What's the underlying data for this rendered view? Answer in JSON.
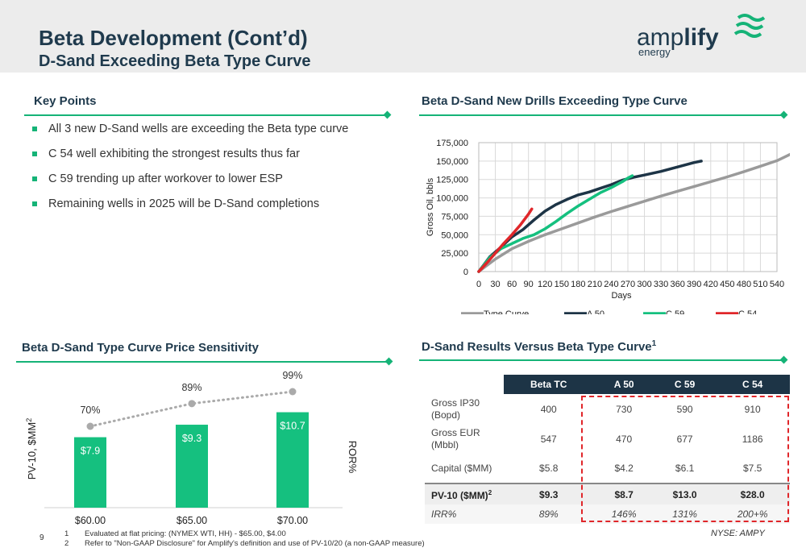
{
  "header": {
    "title": "Beta Development (Cont’d)",
    "subtitle": "D-Sand Exceeding Beta Type Curve",
    "logo_text": "amplify energy"
  },
  "key_points": {
    "title": "Key Points",
    "items": [
      "All 3 new D-Sand wells are exceeding the Beta type curve",
      "C 54 well exhibiting the strongest results thus far",
      "C 59 trending up after workover to lower ESP",
      "Remaining wells in 2025 will be D-Sand completions"
    ]
  },
  "line_section": {
    "title": "Beta D-Sand New Drills Exceeding Type Curve"
  },
  "bar_section": {
    "title": "Beta D-Sand Type Curve Price Sensitivity"
  },
  "table_section": {
    "title": "D-Sand Results Versus Beta Type Curve",
    "superscript": "1"
  },
  "chart_data": [
    {
      "type": "line",
      "title": "Beta D-Sand New Drills Exceeding Type Curve",
      "xlabel": "Days",
      "ylabel": "Gross Oil, bbls",
      "xlim": [
        0,
        540
      ],
      "ylim": [
        0,
        175000
      ],
      "xticks": [
        "0",
        "30",
        "60",
        "90",
        "120",
        "150",
        "180",
        "210",
        "240",
        "270",
        "300",
        "330",
        "360",
        "390",
        "420",
        "450",
        "480",
        "510",
        "540"
      ],
      "yticks": [
        "0",
        "25,000",
        "50,000",
        "75,000",
        "100,000",
        "125,000",
        "150,000",
        "175,000"
      ],
      "grid": true,
      "legend_position": "bottom",
      "series": [
        {
          "name": "Type Curve",
          "color": "#9a9a9a",
          "points": [
            [
              0,
              0
            ],
            [
              30,
              17000
            ],
            [
              60,
              31000
            ],
            [
              90,
              41000
            ],
            [
              120,
              50000
            ],
            [
              150,
              58000
            ],
            [
              180,
              66000
            ],
            [
              210,
              74000
            ],
            [
              240,
              81500
            ],
            [
              270,
              88500
            ],
            [
              300,
              95500
            ],
            [
              330,
              102500
            ],
            [
              360,
              109000
            ],
            [
              390,
              115500
            ],
            [
              420,
              122000
            ],
            [
              450,
              128500
            ],
            [
              480,
              135500
            ],
            [
              510,
              143000
            ],
            [
              540,
              150500
            ],
            [
              572,
              162000
            ]
          ]
        },
        {
          "name": "A 50",
          "color": "#1d3446",
          "points": [
            [
              0,
              0
            ],
            [
              20,
              20000
            ],
            [
              40,
              33000
            ],
            [
              60,
              47000
            ],
            [
              80,
              57000
            ],
            [
              100,
              70000
            ],
            [
              120,
              82000
            ],
            [
              140,
              91000
            ],
            [
              160,
              98000
            ],
            [
              180,
              104000
            ],
            [
              200,
              108000
            ],
            [
              220,
              113000
            ],
            [
              240,
              118000
            ],
            [
              260,
              124000
            ],
            [
              280,
              128000
            ],
            [
              300,
              131000
            ],
            [
              330,
              136000
            ],
            [
              360,
              142000
            ],
            [
              390,
              148000
            ],
            [
              403,
              150000
            ]
          ]
        },
        {
          "name": "C 59",
          "color": "#15c07f",
          "points": [
            [
              0,
              0
            ],
            [
              20,
              19000
            ],
            [
              40,
              31000
            ],
            [
              60,
              38000
            ],
            [
              80,
              45000
            ],
            [
              100,
              50000
            ],
            [
              120,
              58000
            ],
            [
              140,
              68000
            ],
            [
              160,
              79000
            ],
            [
              180,
              89000
            ],
            [
              200,
              98000
            ],
            [
              220,
              107000
            ],
            [
              240,
              114000
            ],
            [
              260,
              122000
            ],
            [
              270,
              127000
            ],
            [
              278,
              130000
            ]
          ]
        },
        {
          "name": "C 54",
          "color": "#e0262a",
          "points": [
            [
              0,
              0
            ],
            [
              15,
              12000
            ],
            [
              30,
              25000
            ],
            [
              45,
              38000
            ],
            [
              60,
              50000
            ],
            [
              75,
              63000
            ],
            [
              90,
              78000
            ],
            [
              96,
              85000
            ]
          ]
        }
      ]
    },
    {
      "type": "bar",
      "title": "Beta D-Sand Type Curve Price Sensitivity",
      "categories": [
        "$60.00",
        "$65.00",
        "$70.00"
      ],
      "values": [
        7.9,
        9.3,
        10.7
      ],
      "value_labels": [
        "$7.9",
        "$9.3",
        "$10.7"
      ],
      "ylabel": "PV-10, $MM",
      "ylabel_superscript": "2",
      "y2label": "ROR%",
      "ror_values": [
        70,
        89,
        99
      ],
      "ror_labels": [
        "70%",
        "89%",
        "99%"
      ],
      "bar_color": "#15c07f",
      "line_color": "#aaaaaa"
    },
    {
      "type": "table",
      "columns": [
        "",
        "Beta TC",
        "A 50",
        "C 59",
        "C 54"
      ],
      "rows": [
        {
          "label": "Gross IP30 (Bopd)",
          "values": [
            "400",
            "730",
            "590",
            "910"
          ]
        },
        {
          "label": "Gross EUR (Mbbl)",
          "values": [
            "547",
            "470",
            "677",
            "1186"
          ]
        },
        {
          "label": "Capital ($MM)",
          "values": [
            "$5.8",
            "$4.2",
            "$6.1",
            "$7.5"
          ]
        },
        {
          "label": "PV-10 ($MM)",
          "label_superscript": "2",
          "values": [
            "$9.3",
            "$8.7",
            "$13.0",
            "$28.0"
          ]
        },
        {
          "label": "IRR%",
          "values": [
            "89%",
            "146%",
            "131%",
            "200+%"
          ]
        }
      ]
    }
  ],
  "footnotes": [
    {
      "num": "1",
      "text": "Evaluated at flat pricing: (NYMEX WTI, HH) - $65.00, $4.00"
    },
    {
      "num": "2",
      "text": "Refer to \"Non-GAAP Disclosure\" for Amplify's definition and use of PV-10/20 (a non-GAAP measure)"
    }
  ],
  "page_number": "9",
  "ticker": "NYSE: AMPY",
  "colors": {
    "navy": "#1f3a4d",
    "green": "#15b377",
    "red": "#e0262a"
  }
}
